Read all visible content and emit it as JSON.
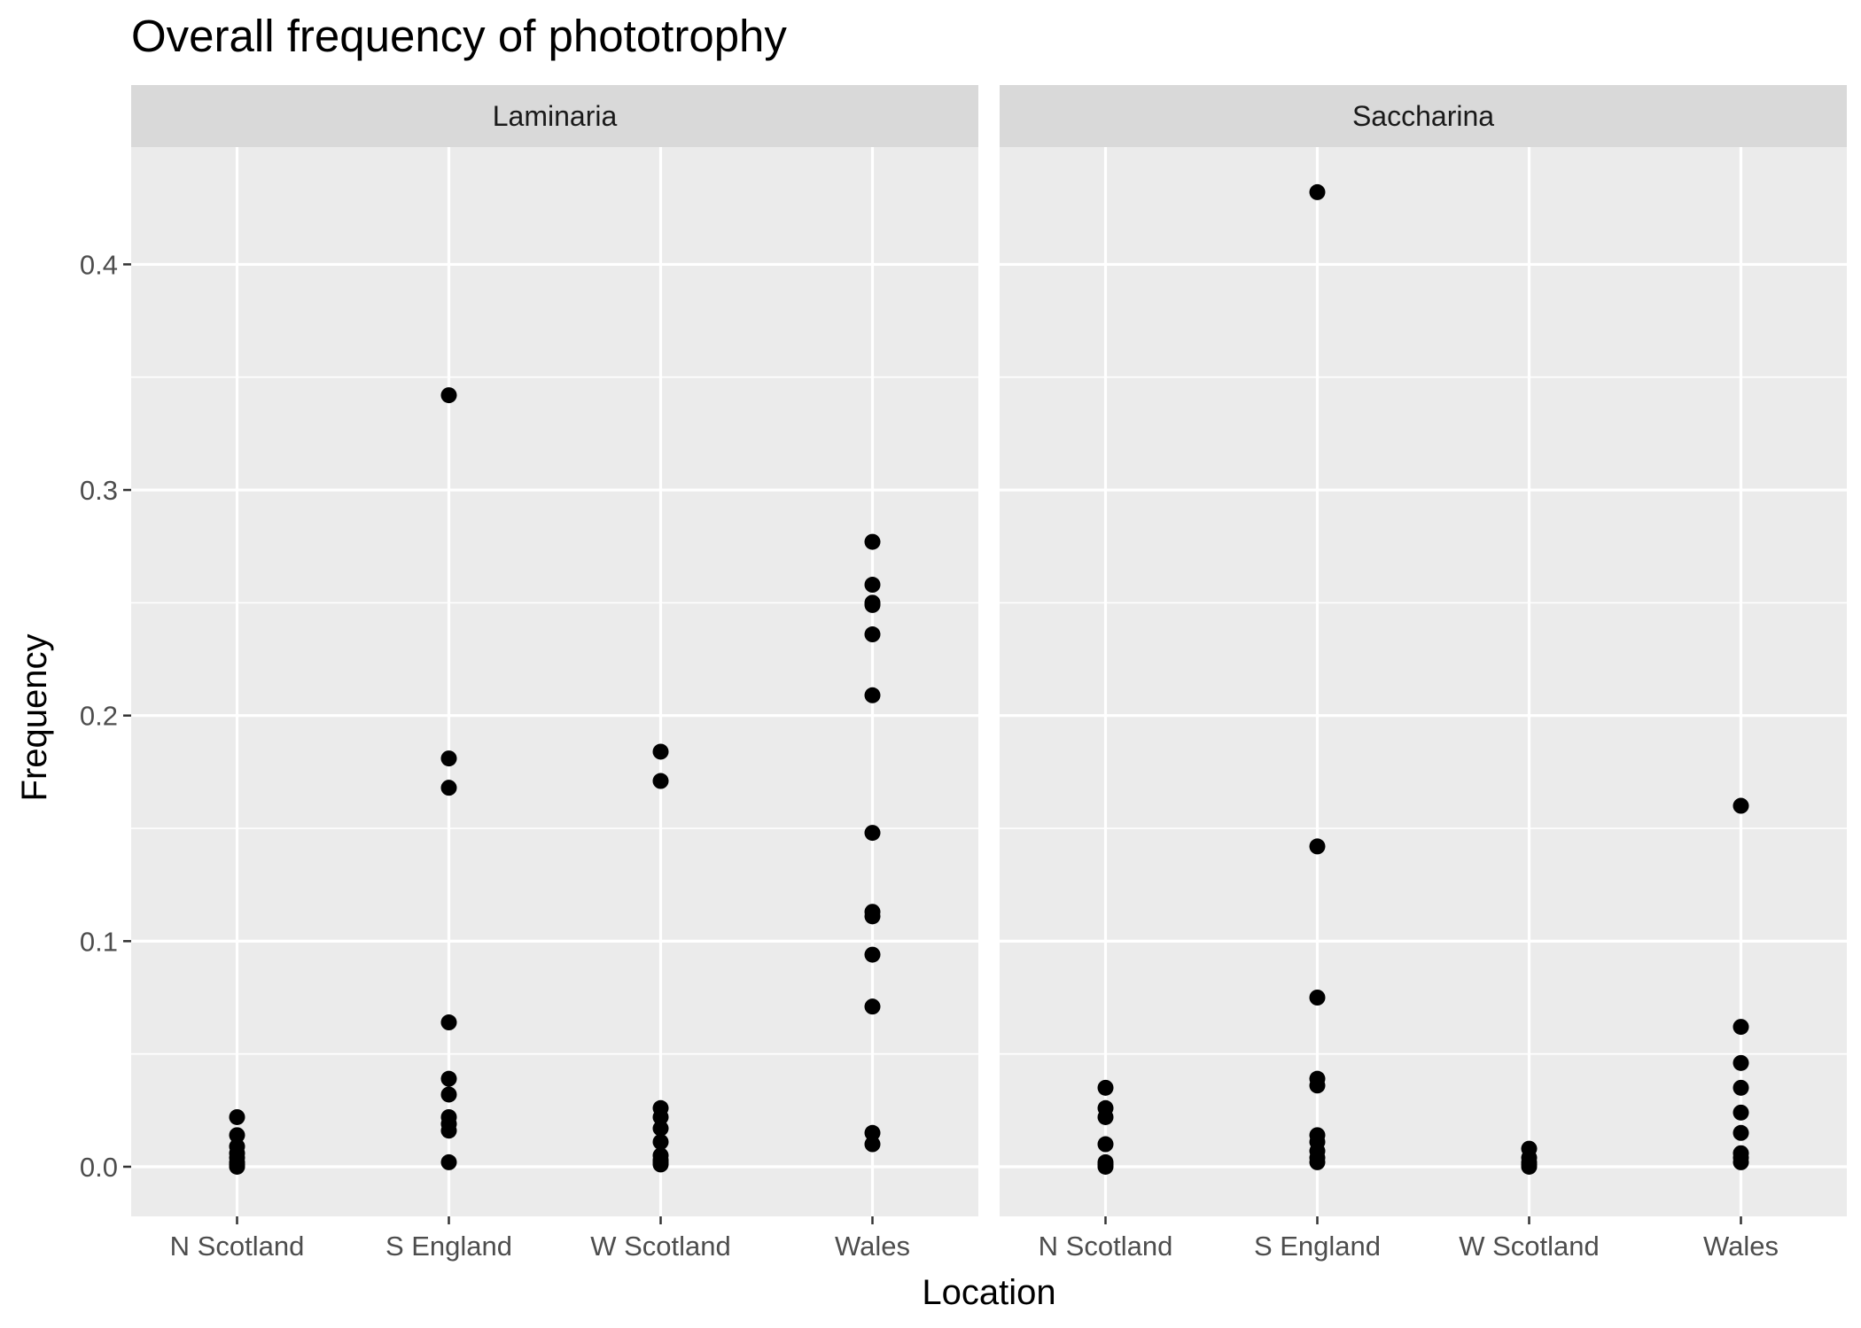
{
  "chart_data": {
    "type": "scatter",
    "title": "Overall frequency of phototrophy",
    "xlabel": "Location",
    "ylabel": "Frequency",
    "categories": [
      "N Scotland",
      "S England",
      "W Scotland",
      "Wales"
    ],
    "ylim": [
      -0.022,
      0.452
    ],
    "yticks": [
      0.0,
      0.1,
      0.2,
      0.3,
      0.4
    ],
    "ytick_labels": [
      "0.0",
      "0.1",
      "0.2",
      "0.3",
      "0.4"
    ],
    "grid": true,
    "legend": "none",
    "colors": {
      "panel": "#EBEBEB",
      "strip": "#D9D9D9",
      "grid": "#FFFFFF",
      "point": "#000000"
    },
    "panels": [
      {
        "name": "Laminaria",
        "points": {
          "N Scotland": [
            0.022,
            0.014,
            0.009,
            0.006,
            0.004,
            0.002,
            0.001,
            0.0
          ],
          "S England": [
            0.342,
            0.181,
            0.168,
            0.064,
            0.039,
            0.032,
            0.022,
            0.019,
            0.016,
            0.002
          ],
          "W Scotland": [
            0.184,
            0.171,
            0.026,
            0.022,
            0.017,
            0.011,
            0.005,
            0.003,
            0.002,
            0.001
          ],
          "Wales": [
            0.277,
            0.258,
            0.25,
            0.249,
            0.236,
            0.209,
            0.148,
            0.113,
            0.111,
            0.094,
            0.071,
            0.015,
            0.01
          ]
        }
      },
      {
        "name": "Saccharina",
        "points": {
          "N Scotland": [
            0.035,
            0.026,
            0.022,
            0.01,
            0.002,
            0.001,
            0.0
          ],
          "S England": [
            0.432,
            0.142,
            0.075,
            0.039,
            0.036,
            0.014,
            0.011,
            0.007,
            0.004,
            0.002
          ],
          "W Scotland": [
            0.008,
            0.004,
            0.002,
            0.001,
            0.0
          ],
          "Wales": [
            0.16,
            0.062,
            0.046,
            0.035,
            0.024,
            0.015,
            0.006,
            0.004,
            0.002
          ]
        }
      }
    ]
  }
}
